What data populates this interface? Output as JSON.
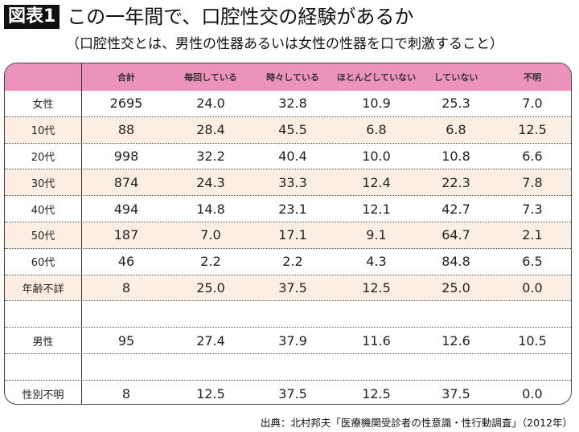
{
  "header": {
    "badge": "図表1",
    "title": "この一年間で、口腔性交の経験があるか",
    "subtitle": "（口腔性交とは、男性の性器あるいは女性の性器を口で刺激すること）"
  },
  "colors": {
    "header_bg": "#ec93bb",
    "alt_row_bg": "#fdeee4"
  },
  "chart_data": {
    "type": "table",
    "columns": [
      "",
      "合計",
      "毎回している",
      "時々している",
      "ほとんどしていない",
      "していない",
      "不明"
    ],
    "rows": [
      {
        "label": "女性",
        "values": [
          "2695",
          "24.0",
          "32.8",
          "10.9",
          "25.3",
          "7.0"
        ]
      },
      {
        "label": "10代",
        "values": [
          "88",
          "28.4",
          "45.5",
          "6.8",
          "6.8",
          "12.5"
        ]
      },
      {
        "label": "20代",
        "values": [
          "998",
          "32.2",
          "40.4",
          "10.0",
          "10.8",
          "6.6"
        ]
      },
      {
        "label": "30代",
        "values": [
          "874",
          "24.3",
          "33.3",
          "12.4",
          "22.3",
          "7.8"
        ]
      },
      {
        "label": "40代",
        "values": [
          "494",
          "14.8",
          "23.1",
          "12.1",
          "42.7",
          "7.3"
        ]
      },
      {
        "label": "50代",
        "values": [
          "187",
          "7.0",
          "17.1",
          "9.1",
          "64.7",
          "2.1"
        ]
      },
      {
        "label": "60代",
        "values": [
          "46",
          "2.2",
          "2.2",
          "4.3",
          "84.8",
          "6.5"
        ]
      },
      {
        "label": "年齢不詳",
        "values": [
          "8",
          "25.0",
          "37.5",
          "12.5",
          "25.0",
          "0.0"
        ]
      },
      {
        "label": "",
        "values": [
          "",
          "",
          "",
          "",
          "",
          ""
        ]
      },
      {
        "label": "男性",
        "values": [
          "95",
          "27.4",
          "37.9",
          "11.6",
          "12.6",
          "10.5"
        ]
      },
      {
        "label": "",
        "values": [
          "",
          "",
          "",
          "",
          "",
          ""
        ]
      },
      {
        "label": "性別不明",
        "values": [
          "8",
          "12.5",
          "37.5",
          "12.5",
          "37.5",
          "0.0"
        ]
      }
    ]
  },
  "footer": {
    "source": "出典：北村邦夫「医療機関受診者の性意識・性行動調査」（2012年）"
  }
}
